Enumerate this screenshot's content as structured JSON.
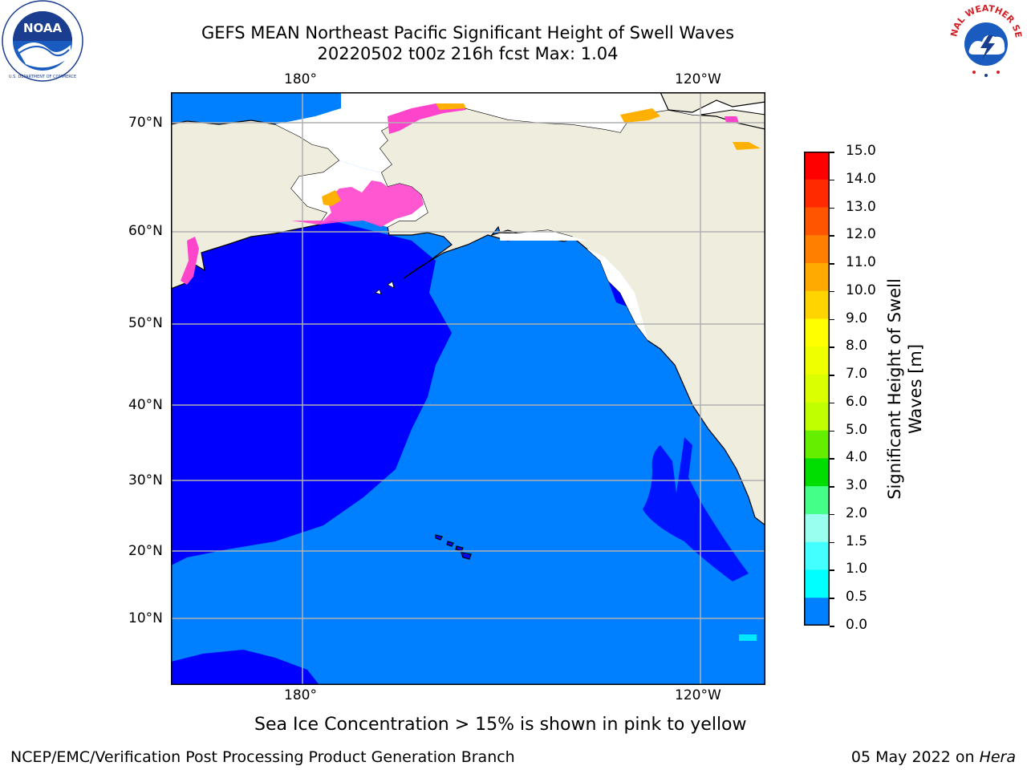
{
  "header": {
    "title_line1": "GEFS MEAN Northeast Pacific Significant Height of Swell Waves",
    "title_line2": "20220502 t00z 216h fcst   Max: 1.04"
  },
  "logos": {
    "left": {
      "text": "NOAA",
      "ring_text": "NATIONAL OCEANIC AND ATMOSPHERIC ADMINISTRATION · U.S. DEPARTMENT OF COMMERCE"
    },
    "right": {
      "ring_text": "NATIONAL WEATHER SERVICE"
    }
  },
  "map": {
    "lon_top_labels": [
      "180°",
      "120°W"
    ],
    "lon_bottom_labels": [
      "180°",
      "120°W"
    ],
    "lat_labels": [
      "70°N",
      "60°N",
      "50°N",
      "40°N",
      "30°N",
      "20°N",
      "10°N"
    ],
    "colors": {
      "ocean_low": "#0000ff",
      "ocean_mid": "#0080ff",
      "land": "#efedde",
      "ice": "#ff44cc",
      "ice_edge": "#ffb000",
      "grid": "#b0b0b0",
      "cyan_spot": "#00e8ff"
    }
  },
  "colorbar": {
    "label": "Significant Height of Swell Waves [m]",
    "label_line1": "Significant Height of Swell",
    "label_line2": "Waves [m]",
    "ticks": [
      "15.0",
      "14.0",
      "13.0",
      "12.0",
      "11.0",
      "10.0",
      "9.0",
      "8.0",
      "7.0",
      "6.0",
      "5.0",
      "4.0",
      "3.0",
      "2.0",
      "1.5",
      "1.0",
      "0.5",
      "0.0"
    ],
    "colors": [
      "#ff0000",
      "#ff2a00",
      "#ff5500",
      "#ff8000",
      "#ffaa00",
      "#ffd400",
      "#ffff00",
      "#f0ff00",
      "#daff00",
      "#c0ff00",
      "#66ee00",
      "#00dd00",
      "#44ff88",
      "#99ffee",
      "#44ffff",
      "#00ffff",
      "#0080ff",
      "#0000ff"
    ]
  },
  "notes": {
    "ice": "Sea Ice Concentration > 15% is shown in pink to yellow"
  },
  "footer": {
    "left": "NCEP/EMC/Verification Post Processing Product Generation Branch",
    "right_date": "05 May 2022 on ",
    "right_host": "Hera"
  }
}
